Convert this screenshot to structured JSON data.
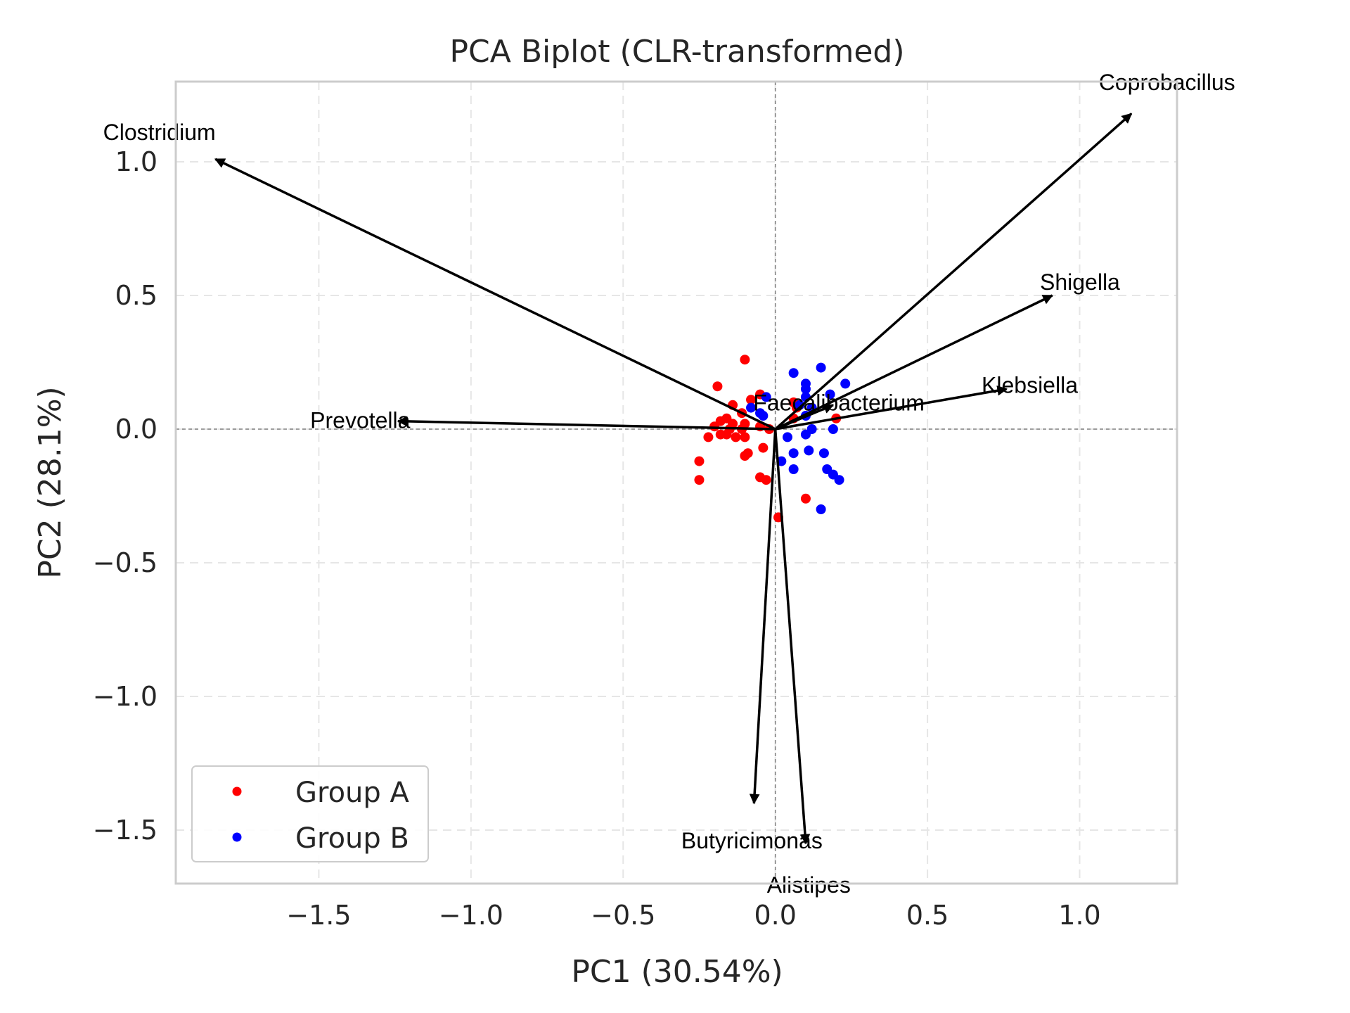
{
  "chart_data": {
    "type": "scatter",
    "title": "PCA Biplot (CLR-transformed)",
    "xlabel": "PC1 (30.54%)",
    "ylabel": "PC2 (28.1%)",
    "xlim": [
      -1.97,
      1.32
    ],
    "ylim": [
      -1.7,
      1.3
    ],
    "xticks": [
      -1.5,
      -1.0,
      -0.5,
      0.0,
      0.5,
      1.0
    ],
    "xtick_labels": [
      "−1.5",
      "−1.0",
      "−0.5",
      "0.0",
      "0.5",
      "1.0"
    ],
    "yticks": [
      -1.5,
      -1.0,
      -0.5,
      0.0,
      0.5,
      1.0
    ],
    "ytick_labels": [
      "−1.5",
      "−1.0",
      "−0.5",
      "0.0",
      "0.5",
      "1.0"
    ],
    "grid": true,
    "legend_position": "lower-left",
    "series": [
      {
        "name": "Group A",
        "color": "#ff0000",
        "points": [
          [
            -0.1,
            0.26
          ],
          [
            -0.19,
            0.16
          ],
          [
            -0.05,
            0.13
          ],
          [
            -0.08,
            0.11
          ],
          [
            -0.14,
            0.09
          ],
          [
            -0.11,
            0.06
          ],
          [
            0.06,
            0.1
          ],
          [
            0.06,
            0.04
          ],
          [
            0.2,
            0.04
          ],
          [
            -0.16,
            0.04
          ],
          [
            -0.18,
            0.03
          ],
          [
            -0.14,
            0.02
          ],
          [
            -0.1,
            0.02
          ],
          [
            -0.2,
            0.01
          ],
          [
            -0.15,
            0.0
          ],
          [
            -0.11,
            0.0
          ],
          [
            -0.05,
            0.01
          ],
          [
            -0.02,
            0.0
          ],
          [
            -0.18,
            -0.02
          ],
          [
            -0.16,
            -0.02
          ],
          [
            -0.22,
            -0.03
          ],
          [
            -0.13,
            -0.03
          ],
          [
            -0.1,
            -0.03
          ],
          [
            -0.04,
            -0.07
          ],
          [
            -0.1,
            -0.1
          ],
          [
            -0.09,
            -0.09
          ],
          [
            -0.25,
            -0.12
          ],
          [
            -0.05,
            -0.18
          ],
          [
            -0.03,
            -0.19
          ],
          [
            -0.25,
            -0.19
          ],
          [
            0.1,
            -0.26
          ],
          [
            0.01,
            -0.33
          ],
          [
            0.07,
            0.08
          ]
        ]
      },
      {
        "name": "Group B",
        "color": "#0000ff",
        "points": [
          [
            0.15,
            0.23
          ],
          [
            0.06,
            0.21
          ],
          [
            0.1,
            0.17
          ],
          [
            0.1,
            0.15
          ],
          [
            0.23,
            0.17
          ],
          [
            0.18,
            0.13
          ],
          [
            0.1,
            0.12
          ],
          [
            -0.03,
            0.12
          ],
          [
            0.08,
            0.09
          ],
          [
            -0.08,
            0.08
          ],
          [
            0.12,
            0.08
          ],
          [
            -0.05,
            0.06
          ],
          [
            -0.04,
            0.05
          ],
          [
            0.1,
            0.05
          ],
          [
            0.19,
            0.0
          ],
          [
            0.12,
            0.0
          ],
          [
            0.1,
            -0.02
          ],
          [
            0.04,
            -0.03
          ],
          [
            0.11,
            -0.08
          ],
          [
            0.16,
            -0.09
          ],
          [
            0.06,
            -0.09
          ],
          [
            0.02,
            -0.12
          ],
          [
            0.06,
            -0.15
          ],
          [
            0.17,
            -0.15
          ],
          [
            0.19,
            -0.17
          ],
          [
            0.21,
            -0.19
          ],
          [
            0.15,
            -0.3
          ]
        ]
      }
    ],
    "loadings": [
      {
        "name": "Clostridium",
        "x": -1.84,
        "y": 1.01
      },
      {
        "name": "Coprobacillus",
        "x": 1.17,
        "y": 1.18
      },
      {
        "name": "Shigella",
        "x": 0.91,
        "y": 0.5
      },
      {
        "name": "Klebsiella",
        "x": 0.76,
        "y": 0.15
      },
      {
        "name": "Faecalibacterium",
        "x": 0.19,
        "y": 0.09
      },
      {
        "name": "Prevotella",
        "x": -1.24,
        "y": 0.03
      },
      {
        "name": "Butyricimonas",
        "x": -0.07,
        "y": -1.4
      },
      {
        "name": "Alistipes",
        "x": 0.1,
        "y": -1.55
      }
    ]
  }
}
